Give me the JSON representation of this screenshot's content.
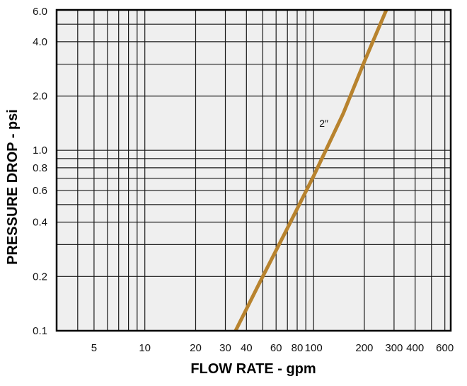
{
  "chart_data": {
    "type": "line",
    "title": "",
    "xlabel": "FLOW RATE - gpm",
    "ylabel": "PRESSURE DROP - psi",
    "x_scale": "log",
    "y_scale": "log",
    "xlim": [
      3,
      650
    ],
    "ylim": [
      0.1,
      6.0
    ],
    "grid": true,
    "x_ticks": [
      {
        "value": 5,
        "label": "5"
      },
      {
        "value": 10,
        "label": "10"
      },
      {
        "value": 20,
        "label": "20"
      },
      {
        "value": 30,
        "label": "30"
      },
      {
        "value": 40,
        "label": "40"
      },
      {
        "value": 60,
        "label": "60"
      },
      {
        "value": 80,
        "label": "80"
      },
      {
        "value": 100,
        "label": "100"
      },
      {
        "value": 200,
        "label": "200"
      },
      {
        "value": 300,
        "label": "300"
      },
      {
        "value": 400,
        "label": "400"
      },
      {
        "value": 600,
        "label": "600"
      }
    ],
    "y_ticks": [
      {
        "value": 0.1,
        "label": "0.1"
      },
      {
        "value": 0.2,
        "label": "0.2"
      },
      {
        "value": 0.4,
        "label": "0.4"
      },
      {
        "value": 0.6,
        "label": "0.6"
      },
      {
        "value": 0.8,
        "label": "0.8"
      },
      {
        "value": 1.0,
        "label": "1.0"
      },
      {
        "value": 2.0,
        "label": "2.0"
      },
      {
        "value": 4.0,
        "label": "4.0"
      },
      {
        "value": 6.0,
        "label": "6.0"
      }
    ],
    "x_grid": [
      4,
      5,
      6,
      7,
      8,
      9,
      10,
      20,
      30,
      40,
      50,
      60,
      70,
      80,
      90,
      100,
      200,
      300,
      400,
      500,
      600
    ],
    "y_grid": [
      0.1,
      0.2,
      0.3,
      0.4,
      0.5,
      0.6,
      0.7,
      0.8,
      0.9,
      1.0,
      2.0,
      3.0,
      4.0,
      5.0,
      6.0
    ],
    "series": [
      {
        "name": "2″",
        "color": "#b8832e",
        "x": [
          34.5,
          50,
          70,
          100,
          150,
          200,
          270
        ],
        "y": [
          0.1,
          0.2,
          0.37,
          0.72,
          1.6,
          3.1,
          6.0
        ]
      }
    ]
  }
}
